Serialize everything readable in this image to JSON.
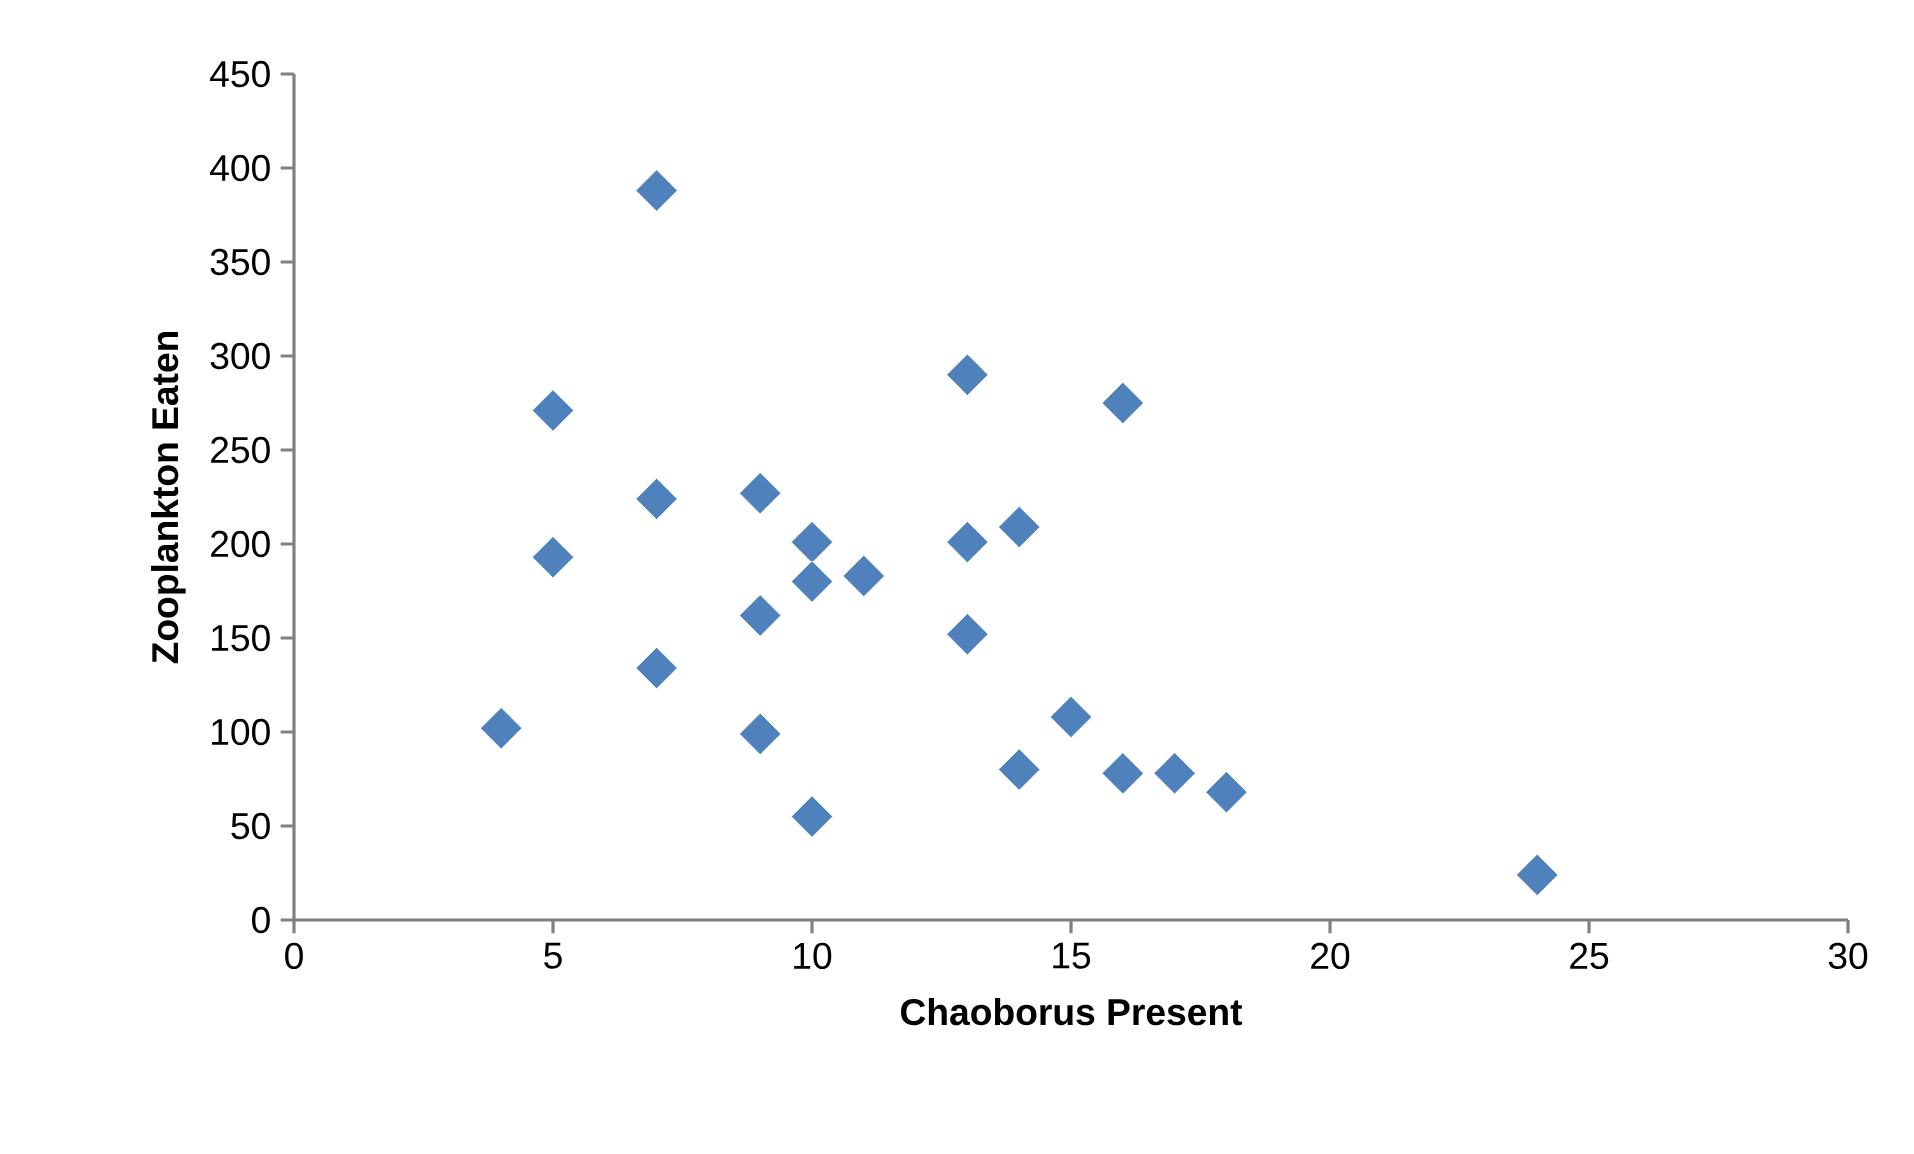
{
  "chart_data": {
    "type": "scatter",
    "xlabel": "Chaoborus Present",
    "ylabel": "Zooplankton Eaten",
    "xlim": [
      0,
      30
    ],
    "xticks": [
      0,
      5,
      10,
      15,
      20,
      25,
      30
    ],
    "ylim": [
      0,
      450
    ],
    "yticks": [
      0,
      50,
      100,
      150,
      200,
      250,
      300,
      350,
      400,
      450
    ],
    "marker": "diamond",
    "grid": false,
    "series": [
      {
        "color": "#4f81bd",
        "x": [
          4,
          7,
          5,
          7,
          9,
          5,
          10,
          10,
          11,
          9,
          7,
          9,
          10,
          13,
          13,
          14,
          13,
          15,
          14,
          16,
          16,
          17,
          18,
          24
        ],
        "values": [
          102,
          388,
          271,
          224,
          227,
          193,
          201,
          180,
          183,
          162,
          134,
          99,
          55,
          290,
          201,
          209,
          152,
          108,
          80,
          275,
          78,
          78,
          68,
          24
        ]
      }
    ]
  }
}
